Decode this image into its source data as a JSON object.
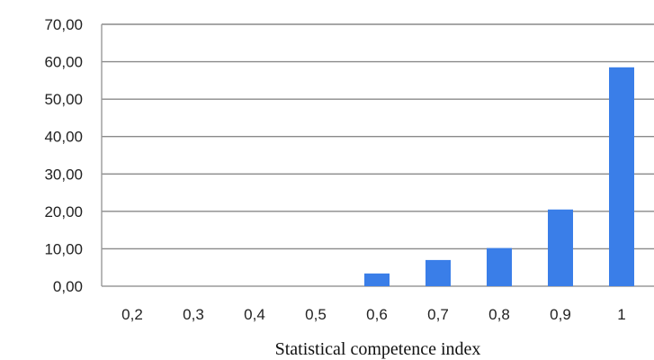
{
  "chart_data": {
    "type": "bar",
    "title": "",
    "xlabel": "Statistical competence index",
    "ylabel": "",
    "categories": [
      "0,2",
      "0,3",
      "0,4",
      "0,5",
      "0,6",
      "0,7",
      "0,8",
      "0,9",
      "1"
    ],
    "values": [
      0,
      0,
      0,
      0,
      3.4,
      7.0,
      10.2,
      20.5,
      58.5
    ],
    "ylim": [
      0,
      70
    ],
    "yticks": [
      "0,00",
      "10,00",
      "20,00",
      "30,00",
      "40,00",
      "50,00",
      "60,00",
      "70,00"
    ],
    "grid": true,
    "legend": "none",
    "bar_color": "#3a7ee8"
  }
}
